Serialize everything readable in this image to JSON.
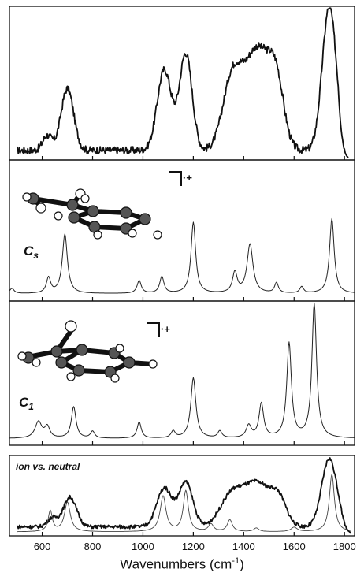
{
  "chart_data": {
    "type": "line",
    "xlabel_main": "Wavenumbers (cm",
    "xlabel_sup": "-1",
    "xlabel_close": ")",
    "xlim": [
      470,
      1840
    ],
    "x_ticks": [
      600,
      800,
      1000,
      1200,
      1400,
      1600,
      1800
    ],
    "x_tick_labels": [
      "600",
      "800",
      "1000",
      "1200",
      "1400",
      "1600",
      "1800"
    ],
    "panels": [
      {
        "id": "experimental",
        "label": "",
        "series": [
          {
            "style": "thick-noisy",
            "baseline": 0.05,
            "peaks": [
              [
                620,
                0.1,
                18
              ],
              [
                700,
                0.42,
                25
              ],
              [
                1085,
                0.55,
                28
              ],
              [
                1170,
                0.66,
                25
              ],
              [
                1355,
                0.48,
                38
              ],
              [
                1455,
                0.68,
                50
              ],
              [
                1530,
                0.38,
                30
              ],
              [
                1740,
                0.98,
                28
              ]
            ]
          }
        ]
      },
      {
        "id": "cs",
        "label": "C",
        "label_sub": "s",
        "charge_symbol": "·+",
        "series": [
          {
            "style": "thin",
            "baseline": 0.02,
            "peaks": [
              [
                480,
                0.04,
                10
              ],
              [
                625,
                0.12,
                10
              ],
              [
                690,
                0.46,
                12
              ],
              [
                985,
                0.1,
                10
              ],
              [
                1075,
                0.13,
                10
              ],
              [
                1200,
                0.55,
                11
              ],
              [
                1365,
                0.16,
                11
              ],
              [
                1425,
                0.38,
                14
              ],
              [
                1530,
                0.08,
                9
              ],
              [
                1630,
                0.05,
                9
              ],
              [
                1750,
                0.58,
                11
              ]
            ]
          }
        ]
      },
      {
        "id": "c1",
        "label": "C",
        "label_sub": "1",
        "charge_symbol": "·+",
        "series": [
          {
            "style": "thin",
            "baseline": 0.02,
            "peaks": [
              [
                585,
                0.12,
                16
              ],
              [
                620,
                0.08,
                12
              ],
              [
                725,
                0.23,
                11
              ],
              [
                800,
                0.05,
                10
              ],
              [
                985,
                0.12,
                10
              ],
              [
                1120,
                0.05,
                10
              ],
              [
                1200,
                0.44,
                12
              ],
              [
                1305,
                0.05,
                10
              ],
              [
                1420,
                0.09,
                12
              ],
              [
                1470,
                0.25,
                11
              ],
              [
                1580,
                0.69,
                11
              ],
              [
                1680,
                0.98,
                11
              ]
            ]
          }
        ]
      },
      {
        "id": "comparison",
        "label": "",
        "legend": "ion vs. neutral",
        "series": [
          {
            "style": "thick-noisy",
            "baseline": 0.08,
            "peaks": [
              [
                640,
                0.12,
                20
              ],
              [
                710,
                0.4,
                26
              ],
              [
                1085,
                0.52,
                30
              ],
              [
                1170,
                0.6,
                28
              ],
              [
                1350,
                0.4,
                45
              ],
              [
                1455,
                0.58,
                55
              ],
              [
                1540,
                0.3,
                30
              ],
              [
                1740,
                0.92,
                30
              ]
            ]
          },
          {
            "style": "thin",
            "baseline": 0.01,
            "peaks": [
              [
                632,
                0.28,
                10
              ],
              [
                700,
                0.4,
                14
              ],
              [
                1080,
                0.48,
                14
              ],
              [
                1170,
                0.55,
                12
              ],
              [
                1270,
                0.1,
                12
              ],
              [
                1345,
                0.16,
                12
              ],
              [
                1450,
                0.05,
                12
              ],
              [
                1600,
                0.06,
                15
              ],
              [
                1750,
                0.78,
                12
              ]
            ]
          }
        ]
      }
    ]
  }
}
